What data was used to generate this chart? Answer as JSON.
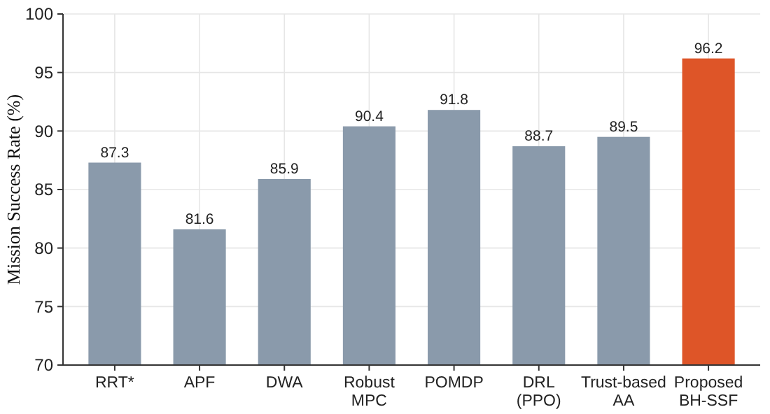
{
  "chart_data": {
    "type": "bar",
    "ylabel": "Mission Success Rate (%)",
    "categories": [
      "RRT*",
      "APF",
      "DWA",
      "Robust\nMPC",
      "POMDP",
      "DRL\n(PPO)",
      "Trust-based\nAA",
      "Proposed\nBH-SSF"
    ],
    "values": [
      87.3,
      81.6,
      85.9,
      90.4,
      91.8,
      88.7,
      89.5,
      96.2
    ],
    "colors": [
      "#8a9aab",
      "#8a9aab",
      "#8a9aab",
      "#8a9aab",
      "#8a9aab",
      "#8a9aab",
      "#8a9aab",
      "#de5528"
    ],
    "ylim": [
      70,
      100
    ],
    "yticks": [
      70,
      75,
      80,
      85,
      90,
      95,
      100
    ],
    "grid": true,
    "data_labels": true
  }
}
